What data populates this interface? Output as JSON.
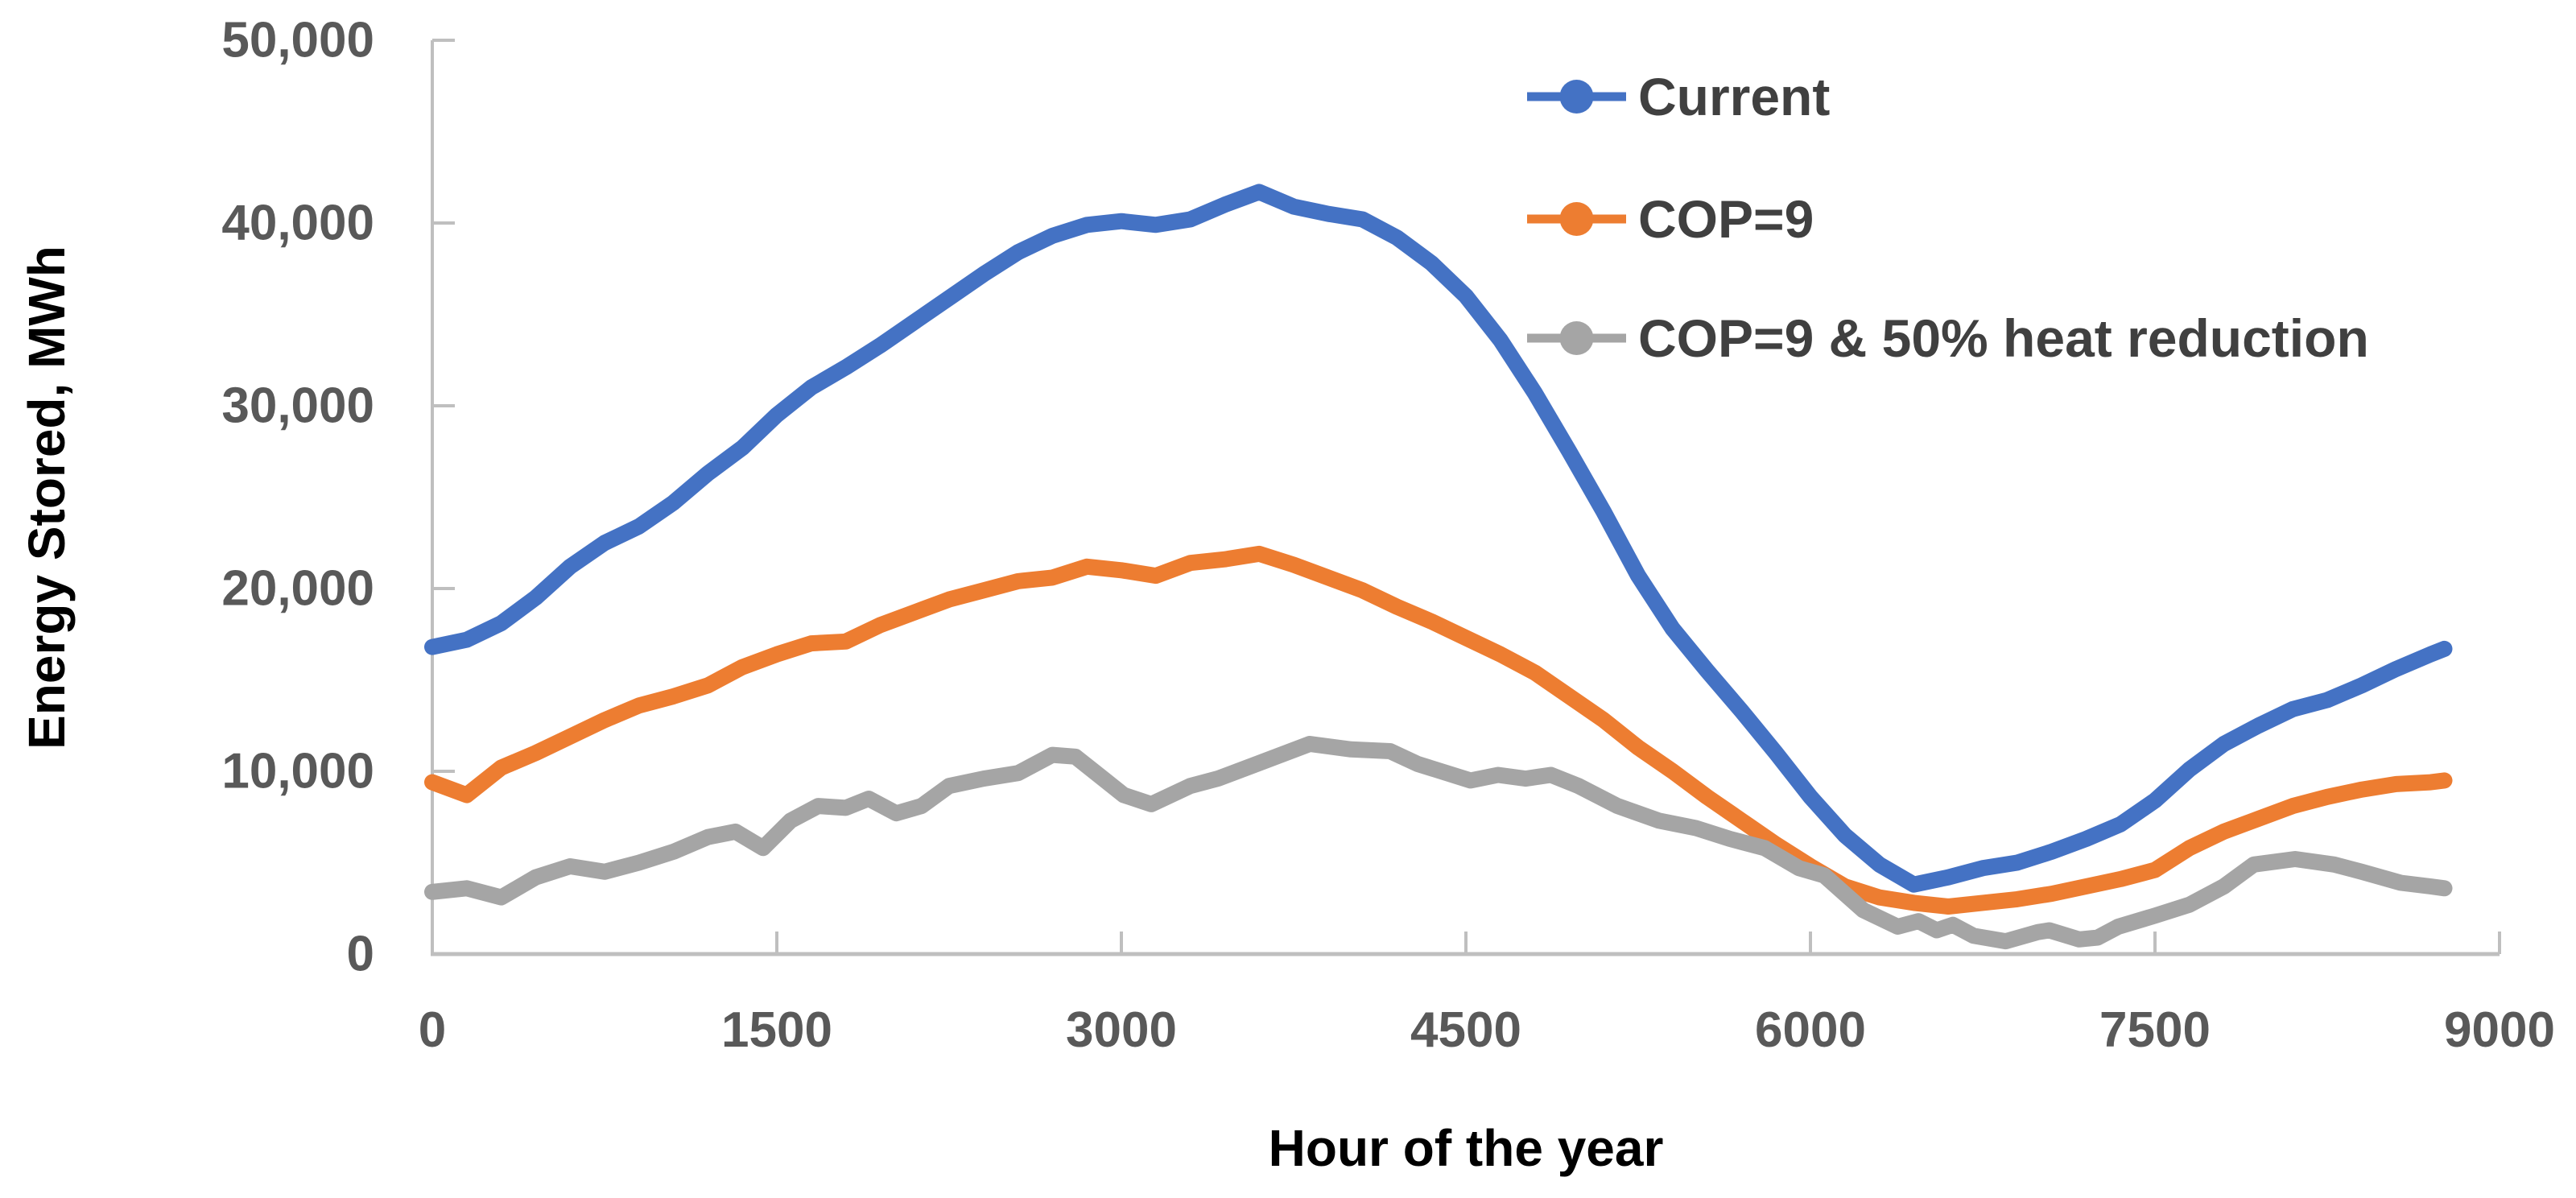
{
  "chart_data": {
    "type": "line",
    "title": "",
    "xlabel": "Hour of the year",
    "ylabel": "Energy Stored, MWh",
    "xlim": [
      0,
      9000
    ],
    "ylim": [
      0,
      50000
    ],
    "x_ticks": [
      0,
      1500,
      3000,
      4500,
      6000,
      7500,
      9000
    ],
    "x_tick_labels": [
      "0",
      "1500",
      "3000",
      "4500",
      "6000",
      "7500",
      "9000"
    ],
    "y_ticks": [
      0,
      10000,
      20000,
      30000,
      40000,
      50000
    ],
    "y_tick_labels": [
      "0",
      "10,000",
      "20,000",
      "30,000",
      "40,000",
      "50,000"
    ],
    "grid": false,
    "legend_position": "top-right",
    "axis_color": "#BFBFBF",
    "tick_label_color": "#595959",
    "legend_text_color": "#404040",
    "series": [
      {
        "name": "Current",
        "color": "#4472C4",
        "points": [
          [
            0,
            16800
          ],
          [
            150,
            17200
          ],
          [
            300,
            18100
          ],
          [
            450,
            19500
          ],
          [
            600,
            21200
          ],
          [
            750,
            22500
          ],
          [
            900,
            23400
          ],
          [
            1050,
            24700
          ],
          [
            1200,
            26300
          ],
          [
            1350,
            27700
          ],
          [
            1500,
            29500
          ],
          [
            1650,
            31000
          ],
          [
            1800,
            32100
          ],
          [
            1950,
            33300
          ],
          [
            2100,
            34600
          ],
          [
            2250,
            35900
          ],
          [
            2400,
            37200
          ],
          [
            2550,
            38400
          ],
          [
            2700,
            39300
          ],
          [
            2850,
            39900
          ],
          [
            3000,
            40100
          ],
          [
            3150,
            39900
          ],
          [
            3300,
            40200
          ],
          [
            3450,
            41000
          ],
          [
            3600,
            41700
          ],
          [
            3750,
            40900
          ],
          [
            3900,
            40500
          ],
          [
            4050,
            40200
          ],
          [
            4200,
            39200
          ],
          [
            4350,
            37800
          ],
          [
            4500,
            36000
          ],
          [
            4650,
            33600
          ],
          [
            4800,
            30700
          ],
          [
            4950,
            27500
          ],
          [
            5100,
            24200
          ],
          [
            5250,
            20700
          ],
          [
            5400,
            17800
          ],
          [
            5550,
            15500
          ],
          [
            5700,
            13300
          ],
          [
            5850,
            11000
          ],
          [
            6000,
            8600
          ],
          [
            6150,
            6500
          ],
          [
            6300,
            4900
          ],
          [
            6450,
            3800
          ],
          [
            6600,
            4200
          ],
          [
            6750,
            4700
          ],
          [
            6900,
            5000
          ],
          [
            7050,
            5600
          ],
          [
            7200,
            6300
          ],
          [
            7350,
            7100
          ],
          [
            7500,
            8400
          ],
          [
            7650,
            10100
          ],
          [
            7800,
            11500
          ],
          [
            7950,
            12500
          ],
          [
            8100,
            13400
          ],
          [
            8250,
            13900
          ],
          [
            8400,
            14700
          ],
          [
            8550,
            15600
          ],
          [
            8700,
            16400
          ],
          [
            8760,
            16700
          ]
        ]
      },
      {
        "name": "COP=9",
        "color": "#ED7D31",
        "points": [
          [
            0,
            9400
          ],
          [
            150,
            8700
          ],
          [
            300,
            10200
          ],
          [
            450,
            11000
          ],
          [
            600,
            11900
          ],
          [
            750,
            12800
          ],
          [
            900,
            13600
          ],
          [
            1050,
            14100
          ],
          [
            1200,
            14700
          ],
          [
            1350,
            15700
          ],
          [
            1500,
            16400
          ],
          [
            1650,
            17000
          ],
          [
            1800,
            17100
          ],
          [
            1950,
            18000
          ],
          [
            2100,
            18700
          ],
          [
            2250,
            19400
          ],
          [
            2400,
            19900
          ],
          [
            2550,
            20400
          ],
          [
            2700,
            20600
          ],
          [
            2850,
            21200
          ],
          [
            3000,
            21000
          ],
          [
            3150,
            20700
          ],
          [
            3300,
            21400
          ],
          [
            3450,
            21600
          ],
          [
            3600,
            21900
          ],
          [
            3750,
            21300
          ],
          [
            3900,
            20600
          ],
          [
            4050,
            19900
          ],
          [
            4200,
            19000
          ],
          [
            4350,
            18200
          ],
          [
            4500,
            17300
          ],
          [
            4650,
            16400
          ],
          [
            4800,
            15400
          ],
          [
            4950,
            14100
          ],
          [
            5100,
            12800
          ],
          [
            5250,
            11300
          ],
          [
            5400,
            10000
          ],
          [
            5550,
            8600
          ],
          [
            5700,
            7300
          ],
          [
            5850,
            6000
          ],
          [
            6000,
            4800
          ],
          [
            6150,
            3700
          ],
          [
            6300,
            3100
          ],
          [
            6450,
            2800
          ],
          [
            6600,
            2600
          ],
          [
            6750,
            2800
          ],
          [
            6900,
            3000
          ],
          [
            7050,
            3300
          ],
          [
            7200,
            3700
          ],
          [
            7350,
            4100
          ],
          [
            7500,
            4600
          ],
          [
            7650,
            5800
          ],
          [
            7800,
            6700
          ],
          [
            7950,
            7400
          ],
          [
            8100,
            8100
          ],
          [
            8250,
            8600
          ],
          [
            8400,
            9000
          ],
          [
            8550,
            9300
          ],
          [
            8700,
            9400
          ],
          [
            8760,
            9500
          ]
        ]
      },
      {
        "name": "COP=9 & 50% heat reduction",
        "color": "#A5A5A5",
        "points": [
          [
            0,
            3400
          ],
          [
            150,
            3600
          ],
          [
            300,
            3100
          ],
          [
            450,
            4200
          ],
          [
            600,
            4800
          ],
          [
            750,
            4500
          ],
          [
            900,
            5000
          ],
          [
            1050,
            5600
          ],
          [
            1200,
            6400
          ],
          [
            1320,
            6700
          ],
          [
            1440,
            5800
          ],
          [
            1560,
            7300
          ],
          [
            1680,
            8100
          ],
          [
            1800,
            8000
          ],
          [
            1900,
            8500
          ],
          [
            2020,
            7700
          ],
          [
            2130,
            8100
          ],
          [
            2250,
            9200
          ],
          [
            2400,
            9600
          ],
          [
            2550,
            9900
          ],
          [
            2700,
            10900
          ],
          [
            2800,
            10800
          ],
          [
            2900,
            9800
          ],
          [
            3010,
            8700
          ],
          [
            3130,
            8200
          ],
          [
            3300,
            9200
          ],
          [
            3420,
            9600
          ],
          [
            3590,
            10400
          ],
          [
            3820,
            11500
          ],
          [
            4000,
            11200
          ],
          [
            4170,
            11100
          ],
          [
            4290,
            10400
          ],
          [
            4520,
            9500
          ],
          [
            4640,
            9800
          ],
          [
            4760,
            9600
          ],
          [
            4870,
            9800
          ],
          [
            4990,
            9200
          ],
          [
            5160,
            8100
          ],
          [
            5340,
            7300
          ],
          [
            5500,
            6900
          ],
          [
            5650,
            6300
          ],
          [
            5800,
            5800
          ],
          [
            5950,
            4700
          ],
          [
            6060,
            4300
          ],
          [
            6230,
            2400
          ],
          [
            6380,
            1500
          ],
          [
            6470,
            1800
          ],
          [
            6550,
            1300
          ],
          [
            6620,
            1600
          ],
          [
            6710,
            1000
          ],
          [
            6850,
            700
          ],
          [
            6990,
            1200
          ],
          [
            7040,
            1300
          ],
          [
            7170,
            800
          ],
          [
            7250,
            900
          ],
          [
            7340,
            1500
          ],
          [
            7500,
            2100
          ],
          [
            7650,
            2700
          ],
          [
            7800,
            3700
          ],
          [
            7930,
            4900
          ],
          [
            8110,
            5200
          ],
          [
            8280,
            4900
          ],
          [
            8400,
            4500
          ],
          [
            8570,
            3900
          ],
          [
            8700,
            3700
          ],
          [
            8760,
            3600
          ]
        ]
      }
    ],
    "layout": {
      "plot_left": 537,
      "plot_right": 3105,
      "plot_bottom": 1185,
      "plot_top": 50,
      "line_width": 20,
      "tick_length": 28,
      "legend_x_line_start": 1897,
      "legend_x_line_end": 2020,
      "legend_marker_radius": 21,
      "legend_text_x": 2035,
      "legend_row_y": [
        120,
        272,
        420
      ],
      "x_tick_label_y": 1300,
      "y_tick_label_x": 465,
      "x_title_x": 1821,
      "x_title_y": 1448,
      "y_title_x": 80,
      "y_title_y": 618
    }
  }
}
